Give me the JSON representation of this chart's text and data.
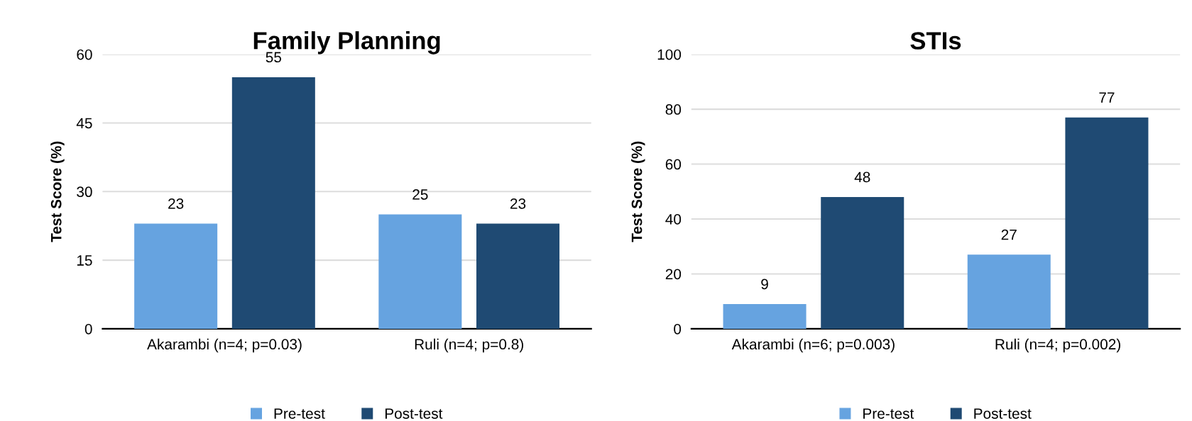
{
  "chart_data": [
    {
      "type": "bar",
      "title": "Family Planning",
      "ylabel": "Test Score (%)",
      "categories": [
        "Akarambi (n=4; p=0.03)",
        "Ruli (n=4; p=0.8)"
      ],
      "series": [
        {
          "name": "Pre-test",
          "color": "#66a3e0",
          "values": [
            23,
            25
          ]
        },
        {
          "name": "Post-test",
          "color": "#1f4a73",
          "values": [
            55,
            23
          ]
        }
      ],
      "ylim": [
        0,
        60
      ],
      "yticks": [
        0,
        15,
        30,
        45,
        60
      ],
      "grid": "y",
      "legend": "bottom",
      "data_labels": true
    },
    {
      "type": "bar",
      "title": "STIs",
      "ylabel": "Test Score (%)",
      "categories": [
        "Akarambi (n=6; p=0.003)",
        "Ruli (n=4; p=0.002)"
      ],
      "series": [
        {
          "name": "Pre-test",
          "color": "#66a3e0",
          "values": [
            9,
            27
          ]
        },
        {
          "name": "Post-test",
          "color": "#1f4a73",
          "values": [
            48,
            77
          ]
        }
      ],
      "ylim": [
        0,
        100
      ],
      "yticks": [
        0,
        20,
        40,
        60,
        80,
        100
      ],
      "grid": "y",
      "legend": "bottom",
      "data_labels": true
    }
  ]
}
